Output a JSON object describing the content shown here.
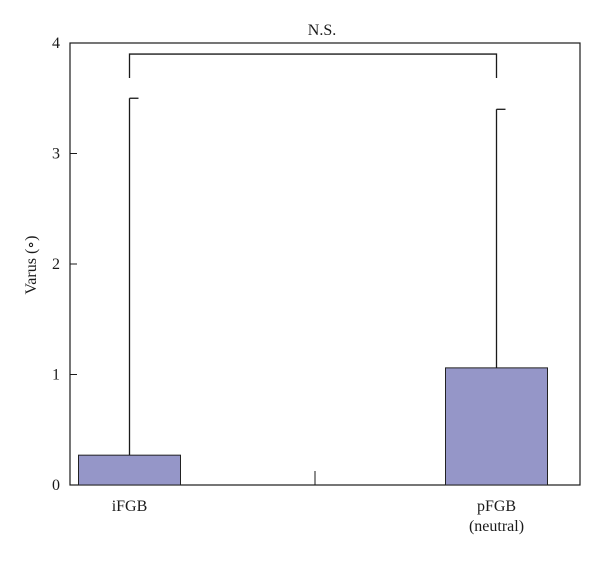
{
  "chart_data": {
    "type": "bar",
    "categories": [
      "iFGB",
      "pFGB\n(neutral)"
    ],
    "values": [
      0.27,
      1.06
    ],
    "error_upper": [
      3.5,
      3.4
    ],
    "xlabel": "",
    "ylabel": "Varus (∘)",
    "ylim": [
      0,
      4
    ],
    "yticks": [
      0,
      1,
      2,
      3,
      4
    ],
    "grid": false,
    "legend": "none",
    "bar_color": "#9596c8",
    "annotations": [
      {
        "text": "N.S.",
        "type": "bracket",
        "between": [
          0,
          1
        ],
        "y": 3.9
      }
    ]
  }
}
